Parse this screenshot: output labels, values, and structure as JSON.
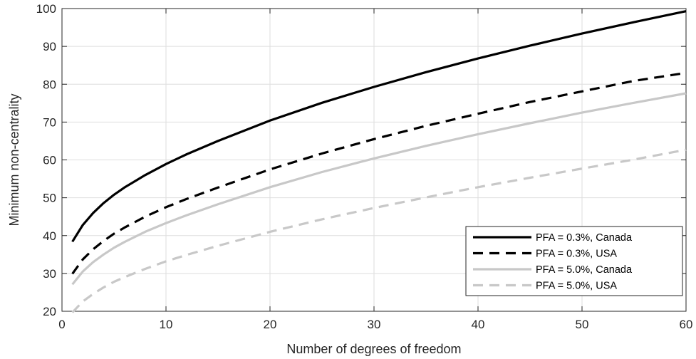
{
  "chart_data": {
    "type": "line",
    "title": "",
    "xlabel": "Number of degrees of freedom",
    "ylabel": "Minimum non-centrality",
    "xlim": [
      0,
      60
    ],
    "ylim": [
      20,
      100
    ],
    "xticks": [
      0,
      10,
      20,
      30,
      40,
      50,
      60
    ],
    "yticks": [
      20,
      30,
      40,
      50,
      60,
      70,
      80,
      90,
      100
    ],
    "grid": true,
    "legend_position": "bottom-right",
    "x": [
      1,
      2,
      3,
      4,
      5,
      6,
      8,
      10,
      12,
      15,
      20,
      25,
      30,
      35,
      40,
      45,
      50,
      55,
      60
    ],
    "series": [
      {
        "name": "PFA = 0.3%, Canada",
        "color": "#000000",
        "dash": "solid",
        "values": [
          38.4,
          42.8,
          46.0,
          48.6,
          50.8,
          52.7,
          56.0,
          58.9,
          61.5,
          65.0,
          70.4,
          75.1,
          79.3,
          83.2,
          86.8,
          90.2,
          93.4,
          96.4,
          99.3
        ]
      },
      {
        "name": "PFA = 0.3%, USA",
        "color": "#000000",
        "dash": "dashed",
        "values": [
          29.9,
          33.7,
          36.4,
          38.6,
          40.5,
          42.1,
          45.0,
          47.5,
          49.7,
          52.7,
          57.5,
          61.7,
          65.5,
          69.0,
          72.2,
          75.3,
          78.1,
          80.9,
          83.0
        ]
      },
      {
        "name": "PFA = 5.0%, Canada",
        "color": "#c8c8c8",
        "dash": "solid",
        "values": [
          27.1,
          30.5,
          33.0,
          35.0,
          36.8,
          38.3,
          41.0,
          43.3,
          45.4,
          48.3,
          52.8,
          56.8,
          60.4,
          63.7,
          66.8,
          69.7,
          72.5,
          75.1,
          77.6
        ]
      },
      {
        "name": "PFA = 5.0%, USA",
        "color": "#c8c8c8",
        "dash": "dashed",
        "values": [
          19.7,
          22.6,
          24.6,
          26.3,
          27.8,
          29.0,
          31.2,
          33.2,
          34.9,
          37.3,
          41.0,
          44.3,
          47.3,
          50.1,
          52.8,
          55.3,
          57.7,
          60.1,
          62.7
        ]
      }
    ]
  }
}
